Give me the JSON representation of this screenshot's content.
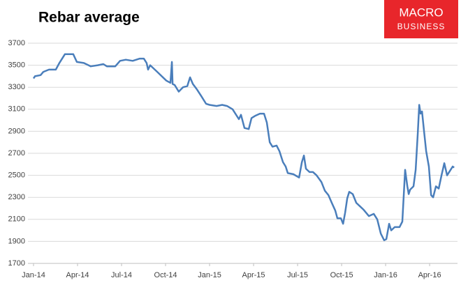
{
  "chart_data": {
    "type": "line",
    "title": "Rebar average",
    "x": [
      0,
      0.1,
      0.48,
      0.67,
      1.05,
      1.52,
      1.76,
      2.14,
      2.71,
      2.95,
      3.43,
      3.9,
      4.38,
      4.76,
      5,
      5.57,
      5.9,
      6.29,
      6.76,
      7.24,
      7.52,
      7.71,
      7.81,
      7.95,
      8.43,
      9.05,
      9.33,
      9.43,
      9.48,
      9.62,
      9.9,
      10.19,
      10.48,
      10.67,
      10.86,
      11.14,
      11.43,
      11.76,
      12,
      12.48,
      12.86,
      13.19,
      13.57,
      14,
      14.14,
      14.38,
      14.67,
      14.86,
      15.1,
      15.43,
      15.71,
      15.9,
      16.1,
      16.29,
      16.57,
      16.76,
      17,
      17.19,
      17.33,
      17.71,
      18.1,
      18.29,
      18.43,
      18.57,
      18.81,
      19.05,
      19.29,
      19.62,
      19.86,
      20.1,
      20.33,
      20.57,
      20.71,
      20.95,
      21.1,
      21.24,
      21.38,
      21.52,
      21.76,
      22,
      22.24,
      22.48,
      22.86,
      23.19,
      23.43,
      23.67,
      23.9,
      24.05,
      24.24,
      24.38,
      24.62,
      24.95,
      25.14,
      25.33,
      25.48,
      25.57,
      25.67,
      25.9,
      26.05,
      26.19,
      26.29,
      26.38,
      26.48,
      26.62,
      26.76,
      26.95,
      27.1,
      27.24,
      27.43,
      27.62,
      27.81,
      28,
      28.19,
      28.38,
      28.57,
      28.67
    ],
    "series": [
      {
        "color": "#4a7ebb",
        "values": [
          3380,
          3400,
          3410,
          3440,
          3460,
          3460,
          3520,
          3600,
          3600,
          3530,
          3520,
          3490,
          3500,
          3510,
          3490,
          3490,
          3540,
          3550,
          3540,
          3560,
          3560,
          3520,
          3460,
          3500,
          3440,
          3360,
          3340,
          3530,
          3330,
          3320,
          3260,
          3300,
          3310,
          3390,
          3330,
          3280,
          3220,
          3150,
          3140,
          3130,
          3140,
          3130,
          3100,
          3010,
          3050,
          2930,
          2920,
          3020,
          3040,
          3060,
          3060,
          2980,
          2800,
          2760,
          2770,
          2720,
          2620,
          2580,
          2520,
          2510,
          2480,
          2620,
          2680,
          2560,
          2530,
          2530,
          2500,
          2440,
          2360,
          2320,
          2250,
          2180,
          2110,
          2110,
          2060,
          2160,
          2290,
          2350,
          2330,
          2250,
          2220,
          2190,
          2130,
          2150,
          2100,
          1970,
          1910,
          1920,
          2060,
          2000,
          2030,
          2030,
          2080,
          2550,
          2400,
          2330,
          2370,
          2400,
          2550,
          2880,
          3140,
          3060,
          3080,
          2900,
          2720,
          2580,
          2320,
          2300,
          2400,
          2380,
          2500,
          2610,
          2500,
          2540,
          2580,
          2570
        ]
      }
    ],
    "xlim": [
      0,
      28.9
    ],
    "xticks": [
      {
        "value": 0,
        "label": "Jan-14"
      },
      {
        "value": 3,
        "label": "Apr-14"
      },
      {
        "value": 6,
        "label": "Jul-14"
      },
      {
        "value": 9,
        "label": "Oct-14"
      },
      {
        "value": 12,
        "label": "Jan-15"
      },
      {
        "value": 15,
        "label": "Apr-15"
      },
      {
        "value": 18,
        "label": "Jul-15"
      },
      {
        "value": 21,
        "label": "Oct-15"
      },
      {
        "value": 24,
        "label": "Jan-16"
      },
      {
        "value": 27,
        "label": "Apr-16"
      }
    ],
    "ylim": [
      1700,
      3700
    ],
    "yticks": [
      1700,
      1900,
      2100,
      2300,
      2500,
      2700,
      2900,
      3100,
      3300,
      3500,
      3700
    ],
    "grid": true
  },
  "logo": {
    "line1": "MACRO",
    "line2": "BUSINESS"
  }
}
